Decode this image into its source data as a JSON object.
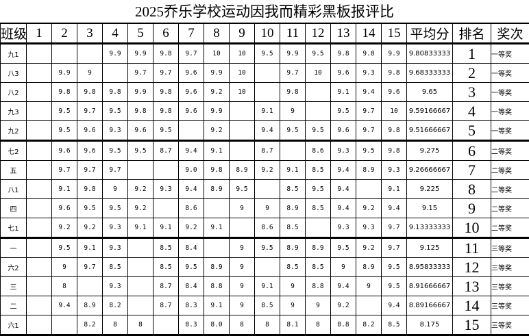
{
  "title": "2025乔乐学校运动因我而精彩黑板报评比",
  "headers": [
    "班级",
    "1",
    "2",
    "3",
    "4",
    "5",
    "6",
    "7",
    "8",
    "9",
    "10",
    "11",
    "12",
    "13",
    "14",
    "15",
    "平均分",
    "排名",
    "奖次"
  ],
  "rows": [
    {
      "cls": "九1",
      "scores": [
        "",
        "",
        "",
        "9.9",
        "9.9",
        "9.8",
        "9.7",
        "10",
        "10",
        "9.5",
        "9.9",
        "9.5",
        "9.8",
        "9.8",
        "9.9"
      ],
      "avg": "9.80833333",
      "rank": "1",
      "award": "一等奖"
    },
    {
      "cls": "八3",
      "scores": [
        "",
        "9.9",
        "9",
        "",
        "9.7",
        "9.7",
        "9.6",
        "9.9",
        "10",
        "",
        "9.7",
        "10",
        "9.6",
        "9.3",
        "9.8"
      ],
      "avg": "9.68333333",
      "rank": "2",
      "award": "一等奖"
    },
    {
      "cls": "八2",
      "scores": [
        "",
        "9.8",
        "9.8",
        "9.8",
        "9.9",
        "9.8",
        "9.6",
        "9.2",
        "10",
        "",
        "9.8",
        "",
        "9.1",
        "9.4",
        "9.6"
      ],
      "avg": "9.65",
      "rank": "3",
      "award": "一等奖"
    },
    {
      "cls": "九3",
      "scores": [
        "",
        "9.5",
        "9.7",
        "9.5",
        "9.8",
        "9.8",
        "9.6",
        "9.9",
        "",
        "9.1",
        "9",
        "",
        "9.5",
        "9.7",
        "10"
      ],
      "avg": "9.59166667",
      "rank": "4",
      "award": "一等奖"
    },
    {
      "cls": "九2",
      "scores": [
        "",
        "9.5",
        "9.6",
        "9.3",
        "9.6",
        "9.5",
        "",
        "9.2",
        "",
        "9.4",
        "9.5",
        "9.5",
        "9.6",
        "9.7",
        "9.8"
      ],
      "avg": "9.51666667",
      "rank": "5",
      "award": "一等奖"
    },
    {
      "cls": "七2",
      "scores": [
        "",
        "9.6",
        "9.6",
        "9.5",
        "9.5",
        "8.7",
        "9.4",
        "9.1",
        "",
        "8.7",
        "",
        "8.6",
        "9.3",
        "9.5",
        "9.8"
      ],
      "avg": "9.275",
      "rank": "6",
      "award": "二等奖"
    },
    {
      "cls": "五",
      "scores": [
        "",
        "9.7",
        "9.7",
        "9.7",
        "",
        "",
        "9.0",
        "9.8",
        "8.9",
        "9.2",
        "9.1",
        "8.5",
        "9.4",
        "8.9",
        "9.3"
      ],
      "avg": "9.26666667",
      "rank": "7",
      "award": "二等奖"
    },
    {
      "cls": "八1",
      "scores": [
        "",
        "9.1",
        "9.8",
        "9",
        "9.2",
        "9.3",
        "9.4",
        "8.9",
        "9.5",
        "",
        "8.5",
        "9.5",
        "9.4",
        "",
        "9.1"
      ],
      "avg": "9.225",
      "rank": "8",
      "award": "二等奖"
    },
    {
      "cls": "四",
      "scores": [
        "",
        "9.6",
        "9.5",
        "9.5",
        "9.2",
        "",
        "8.6",
        "",
        "9",
        "9",
        "8.9",
        "8.5",
        "9.4",
        "9.2",
        "9.4"
      ],
      "avg": "9.15",
      "rank": "9",
      "award": "二等奖"
    },
    {
      "cls": "七1",
      "scores": [
        "",
        "9.2",
        "9.2",
        "9.3",
        "9.1",
        "9.1",
        "9.2",
        "9.1",
        "",
        "8.6",
        "8.5",
        "",
        "9.3",
        "9.3",
        "9.7"
      ],
      "avg": "9.13333333",
      "rank": "10",
      "award": "二等奖"
    },
    {
      "cls": "一",
      "scores": [
        "",
        "9.5",
        "9.1",
        "9.3",
        "",
        "8.5",
        "8.4",
        "",
        "9",
        "9.5",
        "8.9",
        "8.9",
        "9.5",
        "9.2",
        "9.7"
      ],
      "avg": "9.125",
      "rank": "11",
      "award": "三等奖"
    },
    {
      "cls": "六2",
      "scores": [
        "",
        "9",
        "9.7",
        "8.5",
        "",
        "8.5",
        "9.5",
        "8.9",
        "9",
        "",
        "8.5",
        "8.5",
        "9",
        "8.9",
        "9.5"
      ],
      "avg": "8.95833333",
      "rank": "12",
      "award": "三等奖"
    },
    {
      "cls": "三",
      "scores": [
        "",
        "8",
        "",
        "9.3",
        "",
        "8.7",
        "8.4",
        "8.8",
        "9",
        "9.1",
        "9",
        "8.8",
        "9.4",
        "9",
        "9.5"
      ],
      "avg": "8.91666667",
      "rank": "13",
      "award": "三等奖"
    },
    {
      "cls": "二",
      "scores": [
        "",
        "9.4",
        "8.9",
        "8.2",
        "",
        "8.7",
        "8.3",
        "9.1",
        "9",
        "8.5",
        "9",
        "9",
        "9.2",
        "",
        "9.4"
      ],
      "avg": "8.89166667",
      "rank": "14",
      "award": "三等奖"
    },
    {
      "cls": "六1",
      "scores": [
        "",
        "",
        "8.2",
        "8",
        "8",
        "",
        "8.3",
        "8.0",
        "8",
        "8",
        "8.1",
        "8",
        "8.8",
        "8.2",
        "8.5"
      ],
      "avg": "8.175",
      "rank": "15",
      "award": "三等奖"
    }
  ]
}
